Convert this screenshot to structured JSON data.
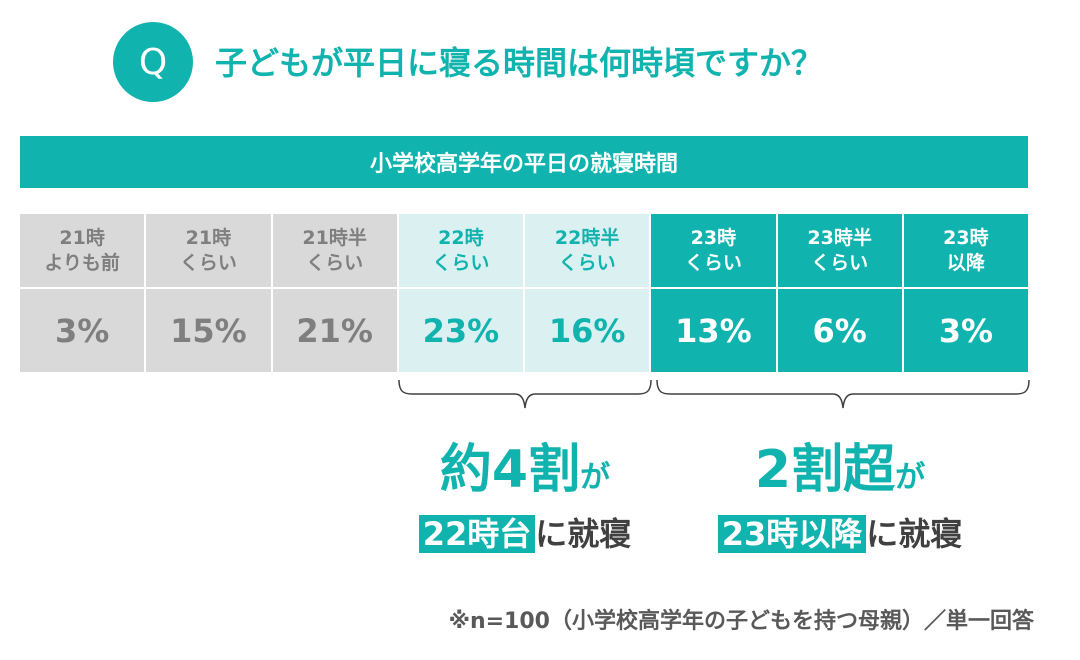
{
  "question": {
    "mark": "Q",
    "text": "子どもが平日に寝る時間は何時頃ですか？"
  },
  "table_title": "小学校高学年の平日の就寝時間",
  "chart_data": {
    "type": "table",
    "columns": [
      {
        "line1": "21時",
        "line2": "よりも前",
        "value": "3%"
      },
      {
        "line1": "21時",
        "line2": "くらい",
        "value": "15%"
      },
      {
        "line1": "21時半",
        "line2": "くらい",
        "value": "21%"
      },
      {
        "line1": "22時",
        "line2": "くらい",
        "value": "23%"
      },
      {
        "line1": "22時半",
        "line2": "くらい",
        "value": "16%"
      },
      {
        "line1": "23時",
        "line2": "くらい",
        "value": "13%"
      },
      {
        "line1": "23時半",
        "line2": "くらい",
        "value": "6%"
      },
      {
        "line1": "23時",
        "line2": "以降",
        "value": "3%"
      }
    ]
  },
  "callouts": {
    "left": {
      "big": "約4割",
      "ga": "が",
      "highlight": "22時台",
      "rest": "に就寝"
    },
    "right": {
      "big": "2割超",
      "ga": "が",
      "highlight": "23時以降",
      "rest": "に就寝"
    }
  },
  "colors": {
    "teal": "#11b3ae",
    "light_teal": "#daf0f1",
    "gray": "#d9d9d9",
    "gray_text": "#7f7f7f"
  },
  "footnote": "※n=100（小学校高学年の子どもを持つ母親）／単一回答"
}
